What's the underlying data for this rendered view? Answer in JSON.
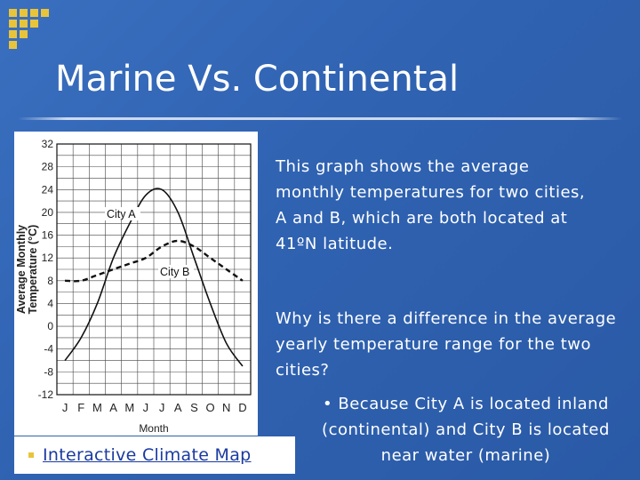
{
  "slide": {
    "title": "Marine Vs. Continental",
    "description": "This graph shows the average monthly temperatures for two cities, A and B, which are both located at 41ºN latitude.",
    "question": "Why is there a difference in the average yearly temperature range for the two cities?",
    "answer": "• Because City A is located inland (continental) and City B is located near water (marine)",
    "link": {
      "bullet": "▪",
      "label": "Interactive Climate Map"
    }
  },
  "chart_data": {
    "type": "line",
    "xlabel": "Month",
    "ylabel_line1": "Average Monthly",
    "ylabel_line2": "Temperature (°C)",
    "categories": [
      "J",
      "F",
      "M",
      "A",
      "M",
      "J",
      "J",
      "A",
      "S",
      "O",
      "N",
      "D"
    ],
    "ylim": [
      -12,
      32
    ],
    "yticks": [
      32,
      28,
      24,
      20,
      16,
      12,
      8,
      4,
      0,
      -4,
      -8,
      -12
    ],
    "grid": true,
    "series": [
      {
        "name": "City A",
        "style": "solid",
        "values": [
          -6,
          -2,
          4,
          12,
          18,
          23,
          24,
          20,
          12,
          4,
          -3,
          -7
        ]
      },
      {
        "name": "City B",
        "style": "dashed",
        "values": [
          8,
          8,
          9,
          10,
          11,
          12,
          14,
          15,
          14,
          12,
          10,
          8
        ]
      }
    ]
  }
}
